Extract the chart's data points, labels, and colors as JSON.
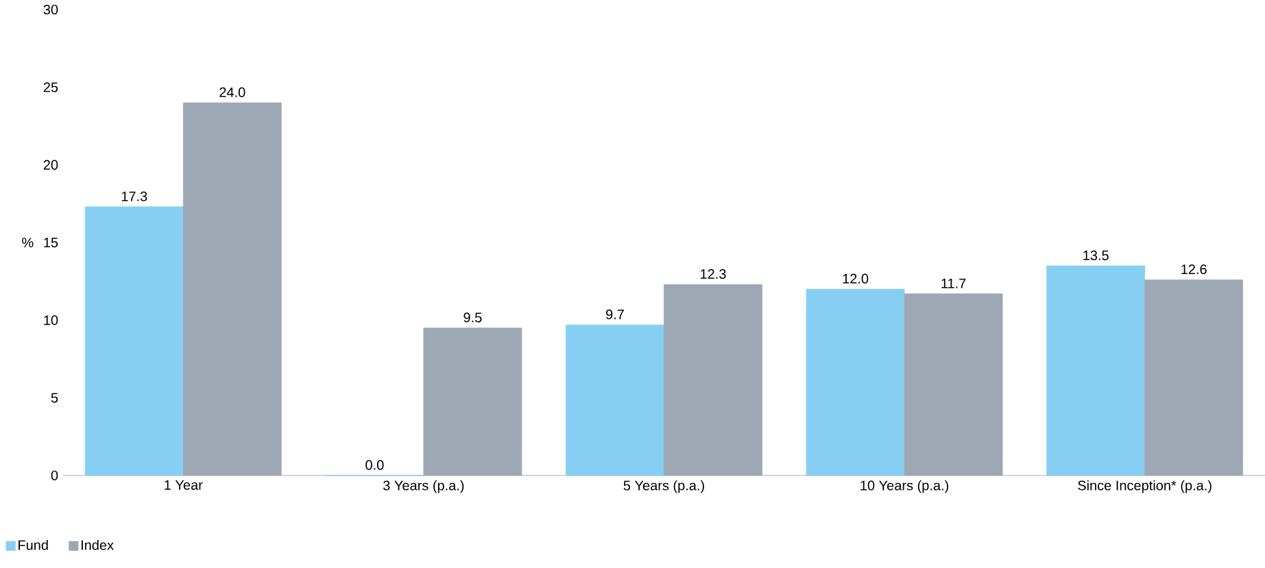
{
  "chart_data": {
    "type": "bar",
    "ylabel": "%",
    "categories": [
      "1 Year",
      "3 Years (p.a.)",
      "5 Years (p.a.)",
      "10 Years (p.a.)",
      "Since Inception* (p.a.)"
    ],
    "series": [
      {
        "name": "Fund",
        "color": "#87cef3",
        "values": [
          17.3,
          0.0,
          9.7,
          12.0,
          13.5
        ],
        "value_labels": [
          "17.3",
          "0.0",
          "9.7",
          "12.0",
          "13.5"
        ]
      },
      {
        "name": "Index",
        "color": "#9ea8b4",
        "values": [
          24.0,
          9.5,
          12.3,
          11.7,
          12.6
        ],
        "value_labels": [
          "24.0",
          "9.5",
          "12.3",
          "11.7",
          "12.6"
        ]
      }
    ],
    "ylim": [
      0,
      30
    ],
    "yticks": [
      0,
      5,
      10,
      15,
      20,
      25,
      30
    ],
    "grid": false,
    "legend": "bottom left"
  }
}
